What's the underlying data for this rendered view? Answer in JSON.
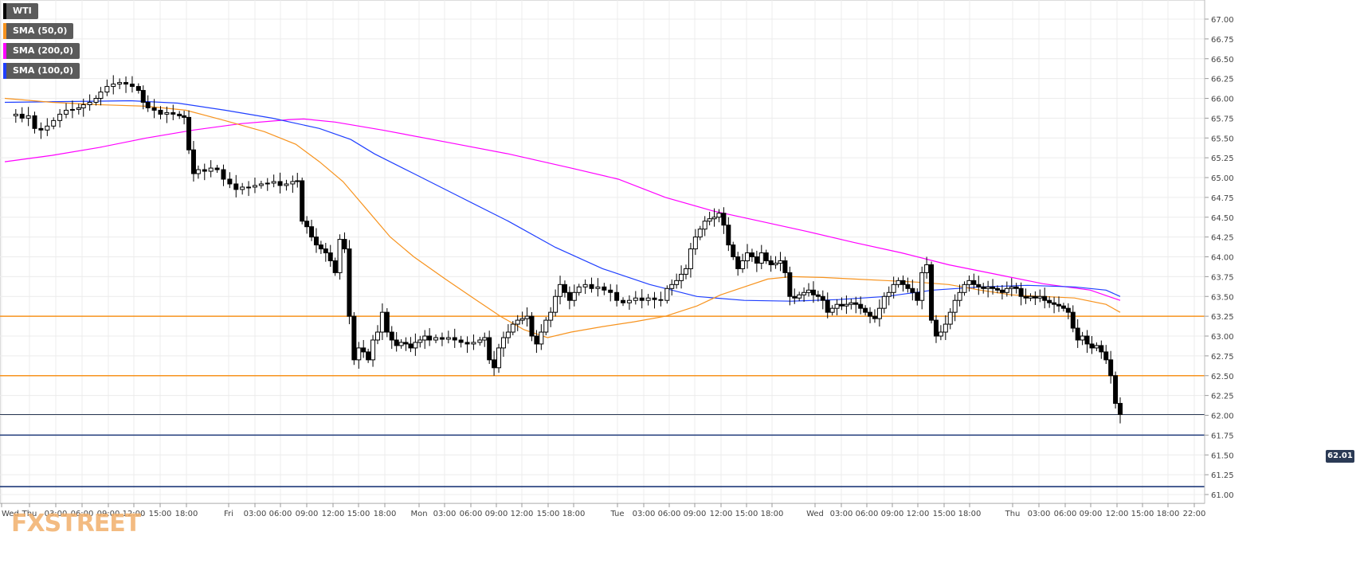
{
  "legend": [
    {
      "label": "WTI",
      "color": "#000000"
    },
    {
      "label": "SMA (50,0)",
      "color": "#f7931e"
    },
    {
      "label": "SMA (200,0)",
      "color": "#ff00ff"
    },
    {
      "label": "SMA (100,0)",
      "color": "#1f3fff"
    }
  ],
  "watermark": "FXSTREET",
  "last_price": "62.01",
  "colors": {
    "candle_up": "#ffffff",
    "candle_down": "#000000",
    "grid": "#ececec",
    "sma50": "#f7931e",
    "sma100": "#1f3fff",
    "sma200": "#ff00ff",
    "resistance": "#f7931e",
    "support": "#1f3a7a"
  },
  "chart_data": {
    "type": "candlestick",
    "instrument": "WTI",
    "ylim": [
      61.0,
      67.0
    ],
    "y_ticks": [
      "67.00",
      "66.75",
      "66.50",
      "66.25",
      "66.00",
      "65.75",
      "65.50",
      "65.25",
      "65.00",
      "64.75",
      "64.50",
      "64.25",
      "64.00",
      "63.75",
      "63.50",
      "63.25",
      "63.00",
      "62.75",
      "62.50",
      "62.25",
      "62.00",
      "61.75",
      "61.50",
      "61.25",
      "61.00"
    ],
    "x_ticks": [
      "Wed",
      "Thu",
      "03:00",
      "06:00",
      "09:00",
      "12:00",
      "15:00",
      "18:00",
      "Fri",
      "03:00",
      "06:00",
      "09:00",
      "12:00",
      "15:00",
      "18:00",
      "Mon",
      "03:00",
      "06:00",
      "09:00",
      "12:00",
      "15:00",
      "18:00",
      "Tue",
      "03:00",
      "06:00",
      "09:00",
      "12:00",
      "15:00",
      "18:00",
      "Wed",
      "03:00",
      "06:00",
      "09:00",
      "12:00",
      "15:00",
      "18:00",
      "Thu",
      "03:00",
      "06:00",
      "09:00",
      "12:00",
      "15:00",
      "18:00",
      "22:00"
    ],
    "horizontal_levels": [
      {
        "price": 63.25,
        "kind": "resistance"
      },
      {
        "price": 62.5,
        "kind": "resistance"
      },
      {
        "price": 62.01,
        "kind": "last"
      },
      {
        "price": 61.75,
        "kind": "support"
      },
      {
        "price": 61.1,
        "kind": "support"
      }
    ],
    "close_path": [
      [
        0,
        65.78
      ],
      [
        14,
        65.8
      ],
      [
        22,
        65.75
      ],
      [
        30,
        65.78
      ],
      [
        38,
        65.62
      ],
      [
        46,
        65.6
      ],
      [
        54,
        65.65
      ],
      [
        62,
        65.72
      ],
      [
        70,
        65.8
      ],
      [
        78,
        65.85
      ],
      [
        86,
        65.86
      ],
      [
        94,
        65.88
      ],
      [
        100,
        65.92
      ],
      [
        108,
        65.95
      ],
      [
        116,
        66.0
      ],
      [
        122,
        66.08
      ],
      [
        130,
        66.15
      ],
      [
        138,
        66.18
      ],
      [
        146,
        66.2
      ],
      [
        154,
        66.18
      ],
      [
        162,
        66.15
      ],
      [
        170,
        66.1
      ],
      [
        176,
        65.95
      ],
      [
        182,
        65.88
      ],
      [
        190,
        65.85
      ],
      [
        198,
        65.8
      ],
      [
        206,
        65.82
      ],
      [
        214,
        65.8
      ],
      [
        222,
        65.78
      ],
      [
        228,
        65.76
      ],
      [
        234,
        65.35
      ],
      [
        240,
        65.05
      ],
      [
        246,
        65.1
      ],
      [
        254,
        65.08
      ],
      [
        262,
        65.12
      ],
      [
        270,
        65.1
      ],
      [
        278,
        64.98
      ],
      [
        286,
        64.92
      ],
      [
        294,
        64.85
      ],
      [
        302,
        64.88
      ],
      [
        310,
        64.88
      ],
      [
        318,
        64.9
      ],
      [
        326,
        64.92
      ],
      [
        334,
        64.93
      ],
      [
        342,
        64.95
      ],
      [
        350,
        64.9
      ],
      [
        358,
        64.92
      ],
      [
        366,
        64.95
      ],
      [
        372,
        64.96
      ],
      [
        378,
        64.45
      ],
      [
        384,
        64.38
      ],
      [
        390,
        64.25
      ],
      [
        396,
        64.15
      ],
      [
        402,
        64.1
      ],
      [
        408,
        64.05
      ],
      [
        414,
        63.95
      ],
      [
        420,
        63.8
      ],
      [
        426,
        64.22
      ],
      [
        432,
        64.1
      ],
      [
        438,
        63.25
      ],
      [
        444,
        62.7
      ],
      [
        450,
        62.85
      ],
      [
        456,
        62.8
      ],
      [
        462,
        62.7
      ],
      [
        468,
        62.95
      ],
      [
        474,
        63.05
      ],
      [
        480,
        63.3
      ],
      [
        486,
        63.05
      ],
      [
        492,
        62.95
      ],
      [
        498,
        62.88
      ],
      [
        504,
        62.92
      ],
      [
        510,
        62.9
      ],
      [
        516,
        62.85
      ],
      [
        522,
        62.92
      ],
      [
        528,
        62.95
      ],
      [
        534,
        63.0
      ],
      [
        540,
        62.95
      ],
      [
        548,
        62.98
      ],
      [
        556,
        62.96
      ],
      [
        564,
        62.98
      ],
      [
        572,
        62.95
      ],
      [
        580,
        62.92
      ],
      [
        588,
        62.9
      ],
      [
        596,
        62.92
      ],
      [
        604,
        62.95
      ],
      [
        610,
        62.98
      ],
      [
        616,
        62.7
      ],
      [
        622,
        62.6
      ],
      [
        628,
        62.85
      ],
      [
        634,
        62.98
      ],
      [
        640,
        63.05
      ],
      [
        646,
        63.15
      ],
      [
        652,
        63.2
      ],
      [
        658,
        63.22
      ],
      [
        664,
        63.25
      ],
      [
        670,
        63.0
      ],
      [
        676,
        62.9
      ],
      [
        682,
        63.05
      ],
      [
        688,
        63.2
      ],
      [
        694,
        63.3
      ],
      [
        700,
        63.5
      ],
      [
        706,
        63.65
      ],
      [
        712,
        63.55
      ],
      [
        718,
        63.45
      ],
      [
        724,
        63.55
      ],
      [
        730,
        63.62
      ],
      [
        738,
        63.65
      ],
      [
        746,
        63.6
      ],
      [
        754,
        63.62
      ],
      [
        762,
        63.58
      ],
      [
        770,
        63.55
      ],
      [
        778,
        63.45
      ],
      [
        786,
        63.42
      ],
      [
        794,
        63.45
      ],
      [
        802,
        63.48
      ],
      [
        810,
        63.45
      ],
      [
        818,
        63.48
      ],
      [
        826,
        63.46
      ],
      [
        834,
        63.45
      ],
      [
        842,
        63.6
      ],
      [
        848,
        63.65
      ],
      [
        854,
        63.7
      ],
      [
        860,
        63.78
      ],
      [
        866,
        63.85
      ],
      [
        872,
        64.1
      ],
      [
        878,
        64.25
      ],
      [
        884,
        64.35
      ],
      [
        890,
        64.45
      ],
      [
        896,
        64.48
      ],
      [
        902,
        64.5
      ],
      [
        908,
        64.55
      ],
      [
        914,
        64.4
      ],
      [
        920,
        64.15
      ],
      [
        926,
        64.0
      ],
      [
        932,
        63.85
      ],
      [
        938,
        63.95
      ],
      [
        944,
        64.05
      ],
      [
        950,
        64.0
      ],
      [
        956,
        63.92
      ],
      [
        962,
        64.05
      ],
      [
        968,
        63.95
      ],
      [
        974,
        63.9
      ],
      [
        980,
        63.92
      ],
      [
        986,
        63.95
      ],
      [
        992,
        63.8
      ],
      [
        998,
        63.5
      ],
      [
        1004,
        63.48
      ],
      [
        1010,
        63.52
      ],
      [
        1016,
        63.55
      ],
      [
        1022,
        63.58
      ],
      [
        1028,
        63.52
      ],
      [
        1034,
        63.5
      ],
      [
        1040,
        63.45
      ],
      [
        1046,
        63.3
      ],
      [
        1052,
        63.35
      ],
      [
        1058,
        63.4
      ],
      [
        1064,
        63.38
      ],
      [
        1070,
        63.4
      ],
      [
        1076,
        63.42
      ],
      [
        1082,
        63.4
      ],
      [
        1088,
        63.35
      ],
      [
        1094,
        63.3
      ],
      [
        1100,
        63.25
      ],
      [
        1106,
        63.22
      ],
      [
        1112,
        63.35
      ],
      [
        1118,
        63.5
      ],
      [
        1124,
        63.55
      ],
      [
        1130,
        63.65
      ],
      [
        1136,
        63.7
      ],
      [
        1142,
        63.65
      ],
      [
        1148,
        63.6
      ],
      [
        1154,
        63.55
      ],
      [
        1160,
        63.45
      ],
      [
        1166,
        63.8
      ],
      [
        1172,
        63.9
      ],
      [
        1178,
        63.2
      ],
      [
        1184,
        63.0
      ],
      [
        1190,
        63.05
      ],
      [
        1196,
        63.15
      ],
      [
        1202,
        63.3
      ],
      [
        1208,
        63.45
      ],
      [
        1214,
        63.55
      ],
      [
        1220,
        63.65
      ],
      [
        1226,
        63.7
      ],
      [
        1232,
        63.65
      ],
      [
        1238,
        63.62
      ],
      [
        1244,
        63.6
      ],
      [
        1250,
        63.62
      ],
      [
        1256,
        63.6
      ],
      [
        1262,
        63.58
      ],
      [
        1268,
        63.55
      ],
      [
        1274,
        63.6
      ],
      [
        1280,
        63.62
      ],
      [
        1286,
        63.6
      ],
      [
        1292,
        63.5
      ],
      [
        1298,
        63.48
      ],
      [
        1304,
        63.5
      ],
      [
        1310,
        63.48
      ],
      [
        1316,
        63.5
      ],
      [
        1322,
        63.45
      ],
      [
        1328,
        63.42
      ],
      [
        1334,
        63.4
      ],
      [
        1340,
        63.38
      ],
      [
        1346,
        63.35
      ],
      [
        1352,
        63.3
      ],
      [
        1358,
        63.1
      ],
      [
        1364,
        62.95
      ],
      [
        1370,
        63.0
      ],
      [
        1376,
        62.9
      ],
      [
        1382,
        62.85
      ],
      [
        1388,
        62.88
      ],
      [
        1394,
        62.8
      ],
      [
        1400,
        62.7
      ],
      [
        1406,
        62.5
      ],
      [
        1412,
        62.15
      ],
      [
        1418,
        62.01
      ]
    ],
    "sma50": [
      [
        0,
        66.0
      ],
      [
        60,
        65.95
      ],
      [
        120,
        65.92
      ],
      [
        180,
        65.9
      ],
      [
        230,
        65.85
      ],
      [
        280,
        65.72
      ],
      [
        330,
        65.58
      ],
      [
        370,
        65.42
      ],
      [
        400,
        65.2
      ],
      [
        430,
        64.95
      ],
      [
        460,
        64.6
      ],
      [
        490,
        64.25
      ],
      [
        520,
        64.0
      ],
      [
        560,
        63.72
      ],
      [
        600,
        63.45
      ],
      [
        630,
        63.25
      ],
      [
        660,
        63.08
      ],
      [
        690,
        62.98
      ],
      [
        720,
        63.05
      ],
      [
        760,
        63.12
      ],
      [
        800,
        63.18
      ],
      [
        840,
        63.25
      ],
      [
        880,
        63.38
      ],
      [
        910,
        63.52
      ],
      [
        940,
        63.62
      ],
      [
        970,
        63.72
      ],
      [
        1000,
        63.75
      ],
      [
        1040,
        63.74
      ],
      [
        1080,
        63.72
      ],
      [
        1120,
        63.7
      ],
      [
        1160,
        63.68
      ],
      [
        1200,
        63.65
      ],
      [
        1240,
        63.58
      ],
      [
        1280,
        63.52
      ],
      [
        1320,
        63.5
      ],
      [
        1360,
        63.48
      ],
      [
        1400,
        63.4
      ],
      [
        1418,
        63.3
      ]
    ],
    "sma100": [
      [
        0,
        65.95
      ],
      [
        80,
        65.96
      ],
      [
        160,
        65.97
      ],
      [
        220,
        65.94
      ],
      [
        280,
        65.85
      ],
      [
        340,
        65.75
      ],
      [
        400,
        65.62
      ],
      [
        440,
        65.48
      ],
      [
        470,
        65.3
      ],
      [
        520,
        65.05
      ],
      [
        580,
        64.75
      ],
      [
        640,
        64.45
      ],
      [
        700,
        64.12
      ],
      [
        760,
        63.85
      ],
      [
        820,
        63.65
      ],
      [
        880,
        63.5
      ],
      [
        940,
        63.45
      ],
      [
        1000,
        63.44
      ],
      [
        1060,
        63.46
      ],
      [
        1120,
        63.5
      ],
      [
        1180,
        63.58
      ],
      [
        1240,
        63.62
      ],
      [
        1300,
        63.64
      ],
      [
        1360,
        63.62
      ],
      [
        1400,
        63.58
      ],
      [
        1418,
        63.5
      ]
    ],
    "sma200": [
      [
        0,
        65.2
      ],
      [
        60,
        65.28
      ],
      [
        120,
        65.38
      ],
      [
        180,
        65.5
      ],
      [
        240,
        65.6
      ],
      [
        300,
        65.68
      ],
      [
        360,
        65.73
      ],
      [
        380,
        65.74
      ],
      [
        420,
        65.7
      ],
      [
        480,
        65.6
      ],
      [
        560,
        65.45
      ],
      [
        640,
        65.3
      ],
      [
        720,
        65.12
      ],
      [
        780,
        64.98
      ],
      [
        840,
        64.75
      ],
      [
        900,
        64.58
      ],
      [
        960,
        64.45
      ],
      [
        1020,
        64.32
      ],
      [
        1080,
        64.18
      ],
      [
        1140,
        64.05
      ],
      [
        1200,
        63.9
      ],
      [
        1260,
        63.78
      ],
      [
        1320,
        63.66
      ],
      [
        1380,
        63.58
      ],
      [
        1418,
        63.45
      ]
    ]
  }
}
